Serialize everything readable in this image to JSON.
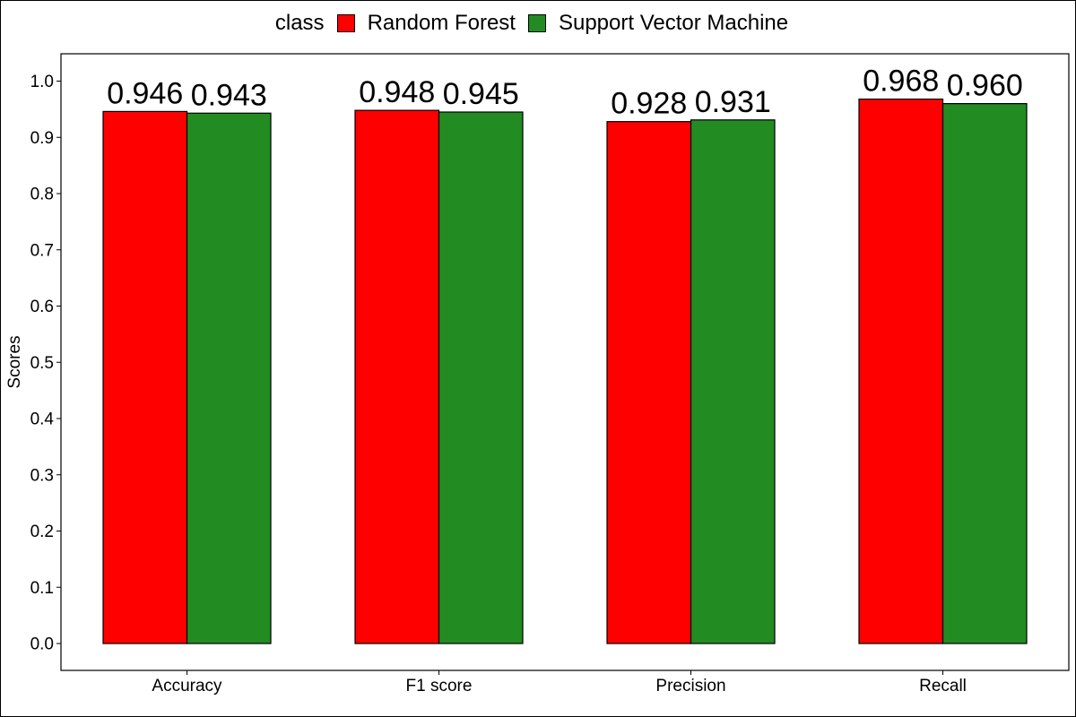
{
  "chart_data": {
    "type": "bar",
    "legend_title": "class",
    "legend_position": "top",
    "ylabel": "Scores",
    "xlabel": "",
    "ylim": [
      0,
      1.05
    ],
    "yticks": [
      "0.0",
      "0.1",
      "0.2",
      "0.3",
      "0.4",
      "0.5",
      "0.6",
      "0.7",
      "0.8",
      "0.9",
      "1.0"
    ],
    "ytick_values": [
      0,
      0.1,
      0.2,
      0.3,
      0.4,
      0.5,
      0.6,
      0.7,
      0.8,
      0.9,
      1.0
    ],
    "grid": false,
    "categories": [
      "Accuracy",
      "F1 score",
      "Precision",
      "Recall"
    ],
    "series": [
      {
        "name": "Random Forest",
        "color": "#ff0000",
        "values": [
          0.946,
          0.948,
          0.928,
          0.968
        ],
        "labels": [
          "0.946",
          "0.948",
          "0.928",
          "0.968"
        ]
      },
      {
        "name": "Support Vector Machine",
        "color": "#228b22",
        "values": [
          0.943,
          0.945,
          0.931,
          0.96
        ],
        "labels": [
          "0.943",
          "0.945",
          "0.931",
          "0.960"
        ]
      }
    ]
  }
}
